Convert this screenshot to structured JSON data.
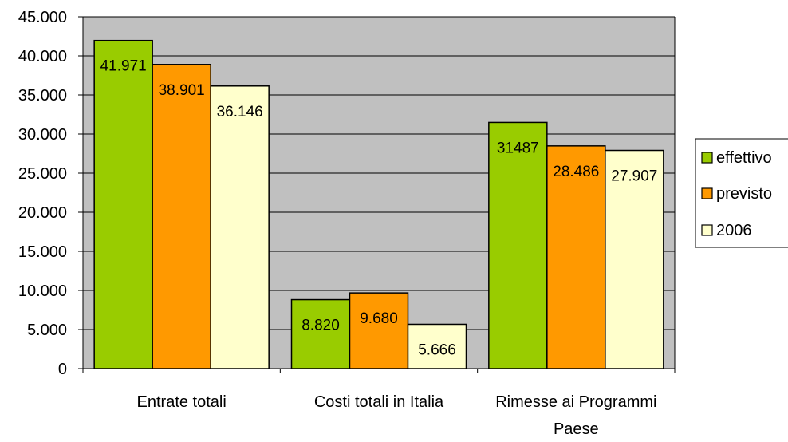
{
  "chart_data": {
    "type": "bar",
    "categories": [
      "Entrate totali",
      "Costi totali in Italia",
      "Rimesse ai Programmi Paese"
    ],
    "series": [
      {
        "name": "effettivo",
        "values": [
          41971,
          8820,
          31487
        ],
        "labels": [
          "41.971",
          "8.820",
          "31487"
        ],
        "color": "#99cc00"
      },
      {
        "name": "previsto",
        "values": [
          38901,
          9680,
          28486
        ],
        "labels": [
          "38.901",
          "9.680",
          "28.486"
        ],
        "color": "#ff9900"
      },
      {
        "name": "2006",
        "values": [
          36146,
          5666,
          27907
        ],
        "labels": [
          "36.146",
          "5.666",
          "27.907"
        ],
        "color": "#ffffcc"
      }
    ],
    "ylim": [
      0,
      45000
    ],
    "yticks": [
      0,
      5000,
      10000,
      15000,
      20000,
      25000,
      30000,
      35000,
      40000,
      45000
    ],
    "ytick_labels": [
      "0",
      "5.000",
      "10.000",
      "15.000",
      "20.000",
      "25.000",
      "30.000",
      "35.000",
      "40.000",
      "45.000"
    ],
    "category_label_lines": [
      [
        "Entrate totali"
      ],
      [
        "Costi totali in Italia"
      ],
      [
        "Rimesse ai Programmi",
        "Paese"
      ]
    ],
    "grid": true,
    "legend_position": "right",
    "plot_background": "#c0c0c0"
  }
}
